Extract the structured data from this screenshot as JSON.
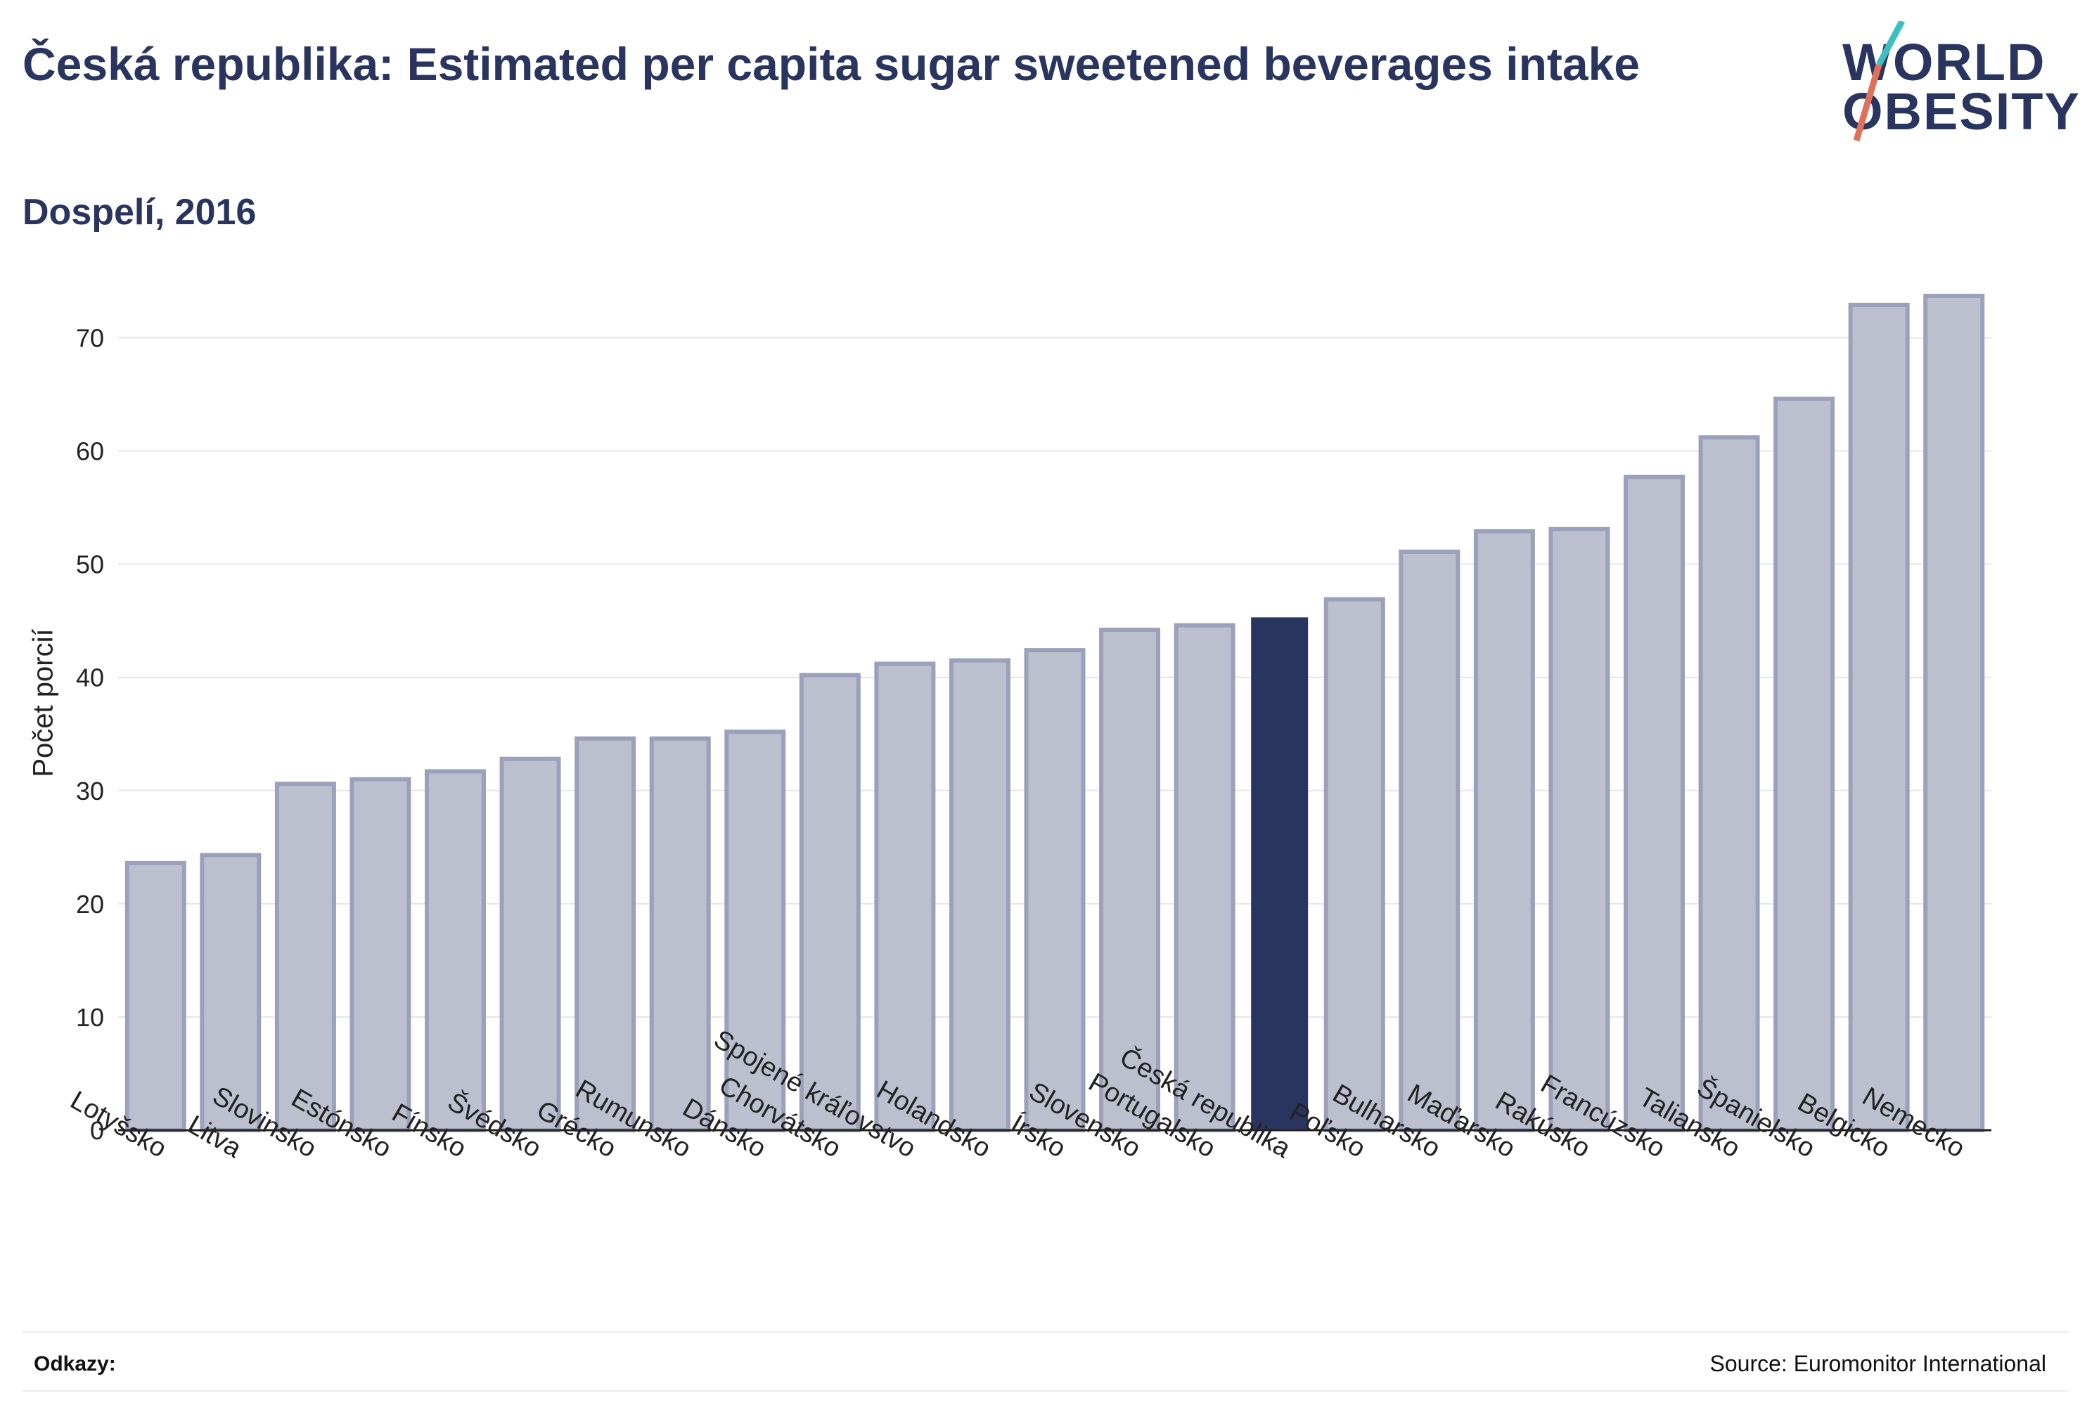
{
  "header": {
    "title": "Česká republika: Estimated per capita sugar sweetened beverages intake",
    "subtitle": "Dospelí, 2016"
  },
  "logo": {
    "line1": "WORLD",
    "line2": "OBESITY",
    "slash_colors": [
      "#3bbfbf",
      "#e0705a"
    ]
  },
  "footer": {
    "refs_label": "Odkazy:",
    "source": "Source: Euromonitor International"
  },
  "colors": {
    "bar": "#bcc0ce",
    "bar_edge": "#9ba1b8",
    "highlight": "#2a355f",
    "grid": "#e6e6e6",
    "text": "#2a355f"
  },
  "chart_data": {
    "type": "bar",
    "ylabel": "Počet porcií",
    "xlabel": "",
    "ylim": [
      0,
      75
    ],
    "yticks": [
      0,
      10,
      20,
      30,
      40,
      50,
      60,
      70
    ],
    "grid": true,
    "highlight": "Česká republika",
    "categories": [
      "Lotyšsko",
      "Litva",
      "Slovinsko",
      "Estónsko",
      "Fínsko",
      "Švédsko",
      "Grécko",
      "Rumunsko",
      "Dánsko",
      "Chorvátsko",
      "Spojené kráľovstvo",
      "Holandsko",
      "Írsko",
      "Slovensko",
      "Portugalsko",
      "Česká republika",
      "Poľsko",
      "Bulharsko",
      "Maďarsko",
      "Rakúsko",
      "Francúzsko",
      "Taliansko",
      "Španielsko",
      "Belgicko",
      "Nemecko"
    ],
    "values": [
      23.6,
      24.3,
      30.6,
      31.0,
      31.7,
      32.8,
      34.6,
      34.6,
      35.2,
      40.2,
      41.2,
      41.5,
      42.4,
      44.2,
      44.6,
      45.3,
      46.9,
      51.1,
      52.9,
      53.1,
      57.7,
      61.2,
      64.6,
      72.9,
      73.7
    ]
  }
}
